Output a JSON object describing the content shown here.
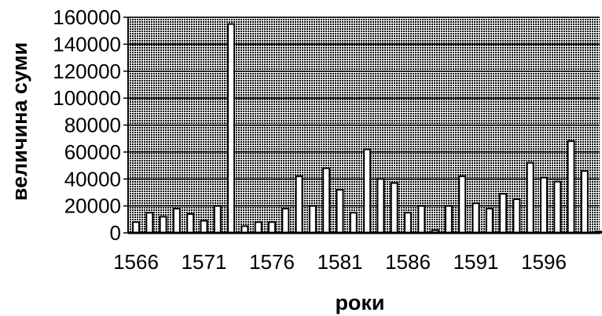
{
  "chart_data": {
    "type": "bar",
    "xlabel": "роки",
    "ylabel": "величина суми",
    "ylim": [
      0,
      160000
    ],
    "yticks": [
      0,
      20000,
      40000,
      60000,
      80000,
      100000,
      120000,
      140000,
      160000
    ],
    "ytick_labels": [
      "0",
      "20000",
      "40000",
      "60000",
      "80000",
      "100000",
      "120000",
      "140000",
      "160000"
    ],
    "xtick_labels": [
      "1566",
      "1571",
      "1576",
      "1581",
      "1586",
      "1591",
      "1596"
    ],
    "grid": true,
    "legend": "none",
    "categories": [
      1566,
      1567,
      1568,
      1569,
      1570,
      1571,
      1572,
      1573,
      1574,
      1575,
      1576,
      1577,
      1578,
      1579,
      1580,
      1581,
      1582,
      1583,
      1584,
      1585,
      1586,
      1587,
      1588,
      1589,
      1590,
      1591,
      1592,
      1593,
      1594,
      1595,
      1596,
      1597,
      1598,
      1599,
      1600
    ],
    "values": [
      8000,
      15000,
      12000,
      18000,
      14000,
      9000,
      20000,
      155000,
      5000,
      8000,
      8000,
      18000,
      42000,
      20000,
      48000,
      32000,
      15000,
      62000,
      40000,
      37000,
      15000,
      20000,
      2000,
      20000,
      42000,
      22000,
      18000,
      29000,
      25000,
      52000,
      41000,
      38000,
      68000,
      46000,
      1000
    ],
    "colors": {
      "bar_fill": "#ffffff",
      "bar_stroke": "#000000",
      "plot_background": "#ffffff",
      "grid": "#000000"
    }
  }
}
